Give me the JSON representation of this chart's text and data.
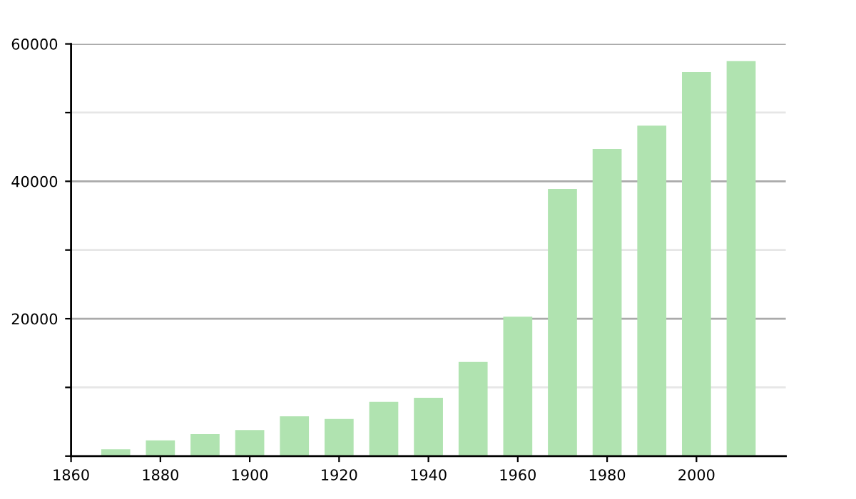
{
  "chart_data": {
    "type": "bar",
    "x": [
      1870,
      1880,
      1890,
      1900,
      1910,
      1920,
      1930,
      1940,
      1950,
      1960,
      1970,
      1980,
      1990,
      2000,
      2010
    ],
    "values": [
      1000,
      2300,
      3200,
      3800,
      5800,
      5400,
      7900,
      8500,
      13700,
      20300,
      38900,
      44700,
      48100,
      55900,
      57500
    ],
    "color": "#b0e3b0",
    "xlim": [
      1860,
      2020
    ],
    "xticks": [
      1860,
      1880,
      1900,
      1920,
      1940,
      1960,
      1980,
      2000
    ],
    "ylim": [
      0,
      60000
    ],
    "yticks": [
      {
        "value": 0,
        "label": null
      },
      {
        "value": 10000,
        "label": null
      },
      20000,
      {
        "value": 30000,
        "label": null
      },
      40000,
      {
        "value": 50000,
        "label": null
      },
      60000
    ],
    "grid": "y"
  }
}
